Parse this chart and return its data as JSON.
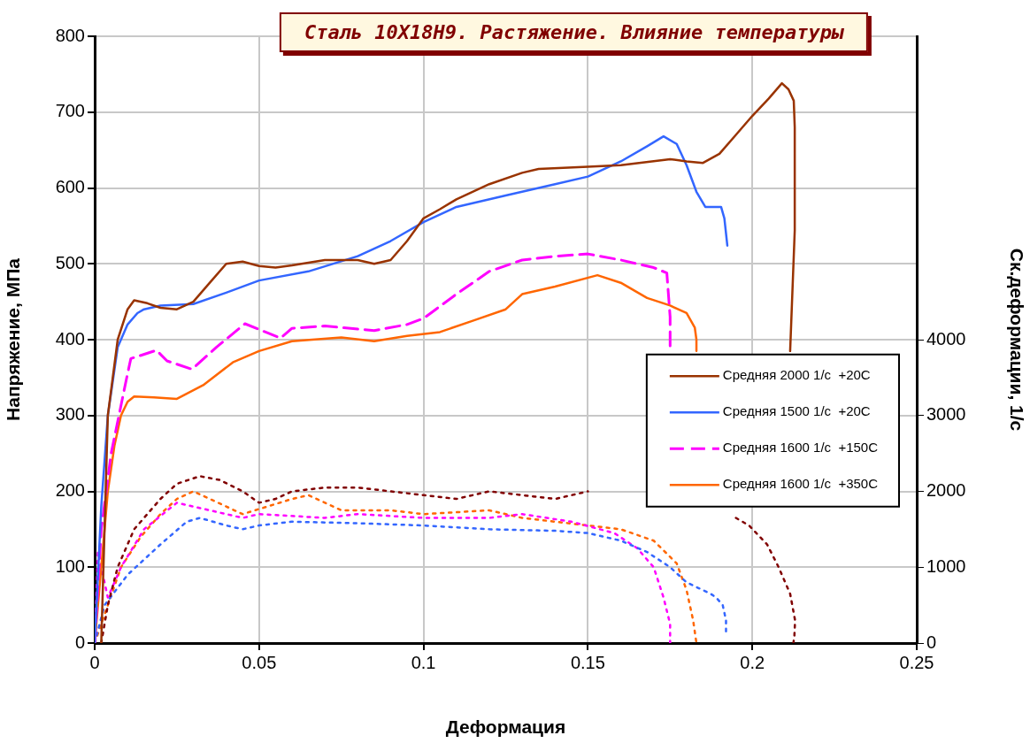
{
  "chart_data": {
    "type": "line",
    "title": "Сталь 10Х18Н9. Растяжение. Влияние температуры",
    "xlabel": "Деформация",
    "ylabel": "Напряжение, МПа",
    "y2label": "Ск.деформации, 1/с",
    "xlim": [
      0,
      0.25
    ],
    "xticks": [
      0,
      0.05,
      0.1,
      0.15,
      0.2,
      0.25
    ],
    "ylim": [
      0,
      800
    ],
    "yticks": [
      0,
      100,
      200,
      300,
      400,
      500,
      600,
      700,
      800
    ],
    "y2lim": [
      0,
      8000
    ],
    "y2ticks": [
      0,
      1000,
      2000,
      3000,
      4000
    ],
    "grid": true,
    "legend": "right",
    "marker": "none",
    "series": [
      {
        "name": "Средняя 2000 1/с  +20С",
        "color": "#993300",
        "line_style": "solid",
        "x": [
          0.002,
          0.004,
          0.007,
          0.01,
          0.012,
          0.016,
          0.02,
          0.025,
          0.03,
          0.035,
          0.04,
          0.045,
          0.05,
          0.055,
          0.06,
          0.07,
          0.08,
          0.085,
          0.09,
          0.095,
          0.1,
          0.105,
          0.11,
          0.12,
          0.13,
          0.135,
          0.15,
          0.16,
          0.175,
          0.18,
          0.185,
          0.19,
          0.195,
          0.2,
          0.205,
          0.209,
          0.211,
          0.2126,
          0.2129,
          0.2129,
          0.2115
        ],
        "values": [
          0,
          300,
          400,
          440,
          452,
          448,
          442,
          440,
          450,
          475,
          500,
          503,
          497,
          495,
          498,
          505,
          505,
          500,
          505,
          530,
          560,
          572,
          585,
          605,
          620,
          625,
          628,
          630,
          638,
          635,
          633,
          645,
          670,
          695,
          718,
          738,
          730,
          715,
          680,
          544,
          385
        ]
      },
      {
        "name": "Средняя 1500 1/с  +20С",
        "color": "#3366ff",
        "line_style": "solid",
        "x": [
          0,
          0.002,
          0.004,
          0.007,
          0.01,
          0.013,
          0.015,
          0.02,
          0.03,
          0.04,
          0.05,
          0.065,
          0.08,
          0.09,
          0.1,
          0.11,
          0.125,
          0.14,
          0.15,
          0.16,
          0.168,
          0.173,
          0.177,
          0.18,
          0.183,
          0.1857,
          0.1905,
          0.1915,
          0.1924
        ],
        "values": [
          0,
          180,
          300,
          390,
          420,
          435,
          440,
          445,
          447,
          462,
          478,
          490,
          510,
          530,
          555,
          575,
          590,
          605,
          615,
          635,
          655,
          668,
          658,
          630,
          595,
          575,
          575,
          560,
          524
        ]
      },
      {
        "name": "Средняя 1600 1/с  +150С",
        "color": "#ff00ff",
        "line_style": "dashed",
        "x": [
          0,
          0.002,
          0.005,
          0.0097,
          0.011,
          0.0188,
          0.022,
          0.0296,
          0.037,
          0.0457,
          0.0565,
          0.06,
          0.07,
          0.085,
          0.095,
          0.1,
          0.11,
          0.12,
          0.13,
          0.14,
          0.15,
          0.16,
          0.17,
          0.174,
          0.175,
          0.175
        ],
        "values": [
          0,
          150,
          250,
          349,
          375,
          386,
          372,
          361,
          390,
          421,
          402,
          415,
          418,
          412,
          420,
          428,
          460,
          490,
          505,
          510,
          513,
          505,
          495,
          488,
          430,
          390
        ]
      },
      {
        "name": "Средняя 1600 1/с  +350С",
        "color": "#ff6600",
        "line_style": "solid",
        "x": [
          0,
          0.002,
          0.004,
          0.006,
          0.008,
          0.01,
          0.012,
          0.018,
          0.025,
          0.033,
          0.042,
          0.05,
          0.06,
          0.075,
          0.085,
          0.095,
          0.105,
          0.115,
          0.125,
          0.13,
          0.14,
          0.1529,
          0.16,
          0.168,
          0.175,
          0.18,
          0.1825,
          0.183,
          0.183
        ],
        "values": [
          0,
          100,
          200,
          260,
          300,
          318,
          325,
          324,
          322,
          340,
          370,
          385,
          398,
          403,
          398,
          405,
          410,
          425,
          440,
          460,
          470,
          485,
          475,
          455,
          445,
          435,
          416,
          400,
          385
        ]
      },
      {
        "color": "#800000",
        "line_style": "dotted",
        "axis": "y2",
        "x": [
          0.002,
          0.004,
          0.007,
          0.012,
          0.02,
          0.025,
          0.032,
          0.038,
          0.045,
          0.05,
          0.055,
          0.06,
          0.07,
          0.08,
          0.09,
          0.1,
          0.11,
          0.12,
          0.13,
          0.14,
          0.15,
          0.152,
          0.195,
          0.199,
          0.2045,
          0.208,
          0.2115,
          0.213,
          0.2128,
          0.2125
        ],
        "values": [
          0,
          500,
          1000,
          1500,
          1900,
          2100,
          2200,
          2150,
          2000,
          1850,
          1900,
          2000,
          2050,
          2050,
          2000,
          1950,
          1900,
          2000,
          1950,
          1900,
          2000,
          null,
          1650,
          1550,
          1300,
          1000,
          650,
          300,
          100,
          0
        ]
      },
      {
        "color": "#3366ff",
        "line_style": "dotted",
        "axis": "y2",
        "x": [
          0,
          0.003,
          0.01,
          0.02,
          0.028,
          0.032,
          0.04,
          0.045,
          0.05,
          0.06,
          0.08,
          0.1,
          0.12,
          0.14,
          0.15,
          0.16,
          0.168,
          0.175,
          0.18,
          0.1873,
          0.189,
          0.191,
          0.192,
          0.192
        ],
        "values": [
          0,
          500,
          900,
          1300,
          1600,
          1650,
          1550,
          1500,
          1550,
          1600,
          1580,
          1550,
          1500,
          1480,
          1450,
          1350,
          1200,
          1000,
          800,
          650,
          600,
          500,
          300,
          100
        ]
      },
      {
        "color": "#ff00ff",
        "line_style": "dotted",
        "axis": "y2",
        "x": [
          0,
          0.001,
          0.004,
          0.008,
          0.015,
          0.025,
          0.035,
          0.045,
          0.05,
          0.07,
          0.08,
          0.1,
          0.12,
          0.13,
          0.145,
          0.158,
          0.165,
          0.17,
          0.173,
          0.175,
          0.175
        ],
        "values": [
          0,
          1200,
          600,
          1000,
          1500,
          1850,
          1750,
          1650,
          1700,
          1650,
          1700,
          1650,
          1650,
          1700,
          1600,
          1450,
          1250,
          1000,
          600,
          250,
          0
        ]
      },
      {
        "color": "#ff6600",
        "line_style": "dotted",
        "axis": "y2",
        "x": [
          0,
          0.004,
          0.008,
          0.014,
          0.02,
          0.025,
          0.03,
          0.04,
          0.045,
          0.06,
          0.065,
          0.075,
          0.09,
          0.1,
          0.12,
          0.13,
          0.14,
          0.15,
          0.16,
          0.17,
          0.177,
          0.18,
          0.182,
          0.183
        ],
        "values": [
          0,
          500,
          1000,
          1400,
          1700,
          1900,
          2000,
          1800,
          1700,
          1900,
          1950,
          1750,
          1750,
          1700,
          1750,
          1650,
          1600,
          1550,
          1500,
          1350,
          1050,
          700,
          300,
          0
        ]
      }
    ]
  }
}
